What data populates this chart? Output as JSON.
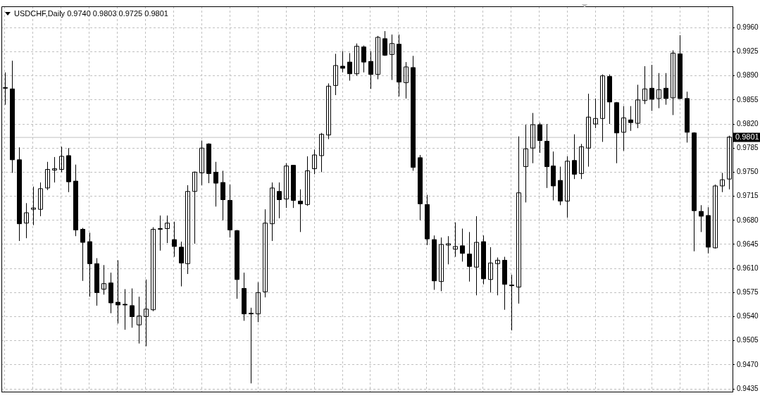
{
  "chart_data": {
    "type": "candlestick",
    "title": "USDCHF,Daily 0.9740 0.9803 0.9725 0.9801",
    "categories": [
      null,
      null,
      null,
      null,
      null,
      null,
      null,
      null,
      null,
      null,
      null,
      null,
      null,
      null,
      null,
      null,
      null,
      null,
      null,
      null,
      null,
      null,
      null,
      null,
      null,
      null,
      null,
      null,
      null,
      null,
      null,
      null,
      null,
      null,
      null,
      null,
      null,
      null,
      null,
      null,
      null,
      null,
      null,
      null,
      null,
      null,
      null,
      null,
      null,
      null,
      null,
      null,
      null,
      null,
      null,
      null,
      null,
      null,
      null,
      null,
      null,
      null,
      null,
      null,
      null,
      null,
      null,
      null,
      null,
      null,
      null,
      null,
      null,
      null,
      null,
      null,
      null,
      null,
      null,
      null,
      null,
      null,
      null,
      null,
      null,
      null,
      null,
      null,
      null,
      null,
      null,
      null,
      null,
      null,
      null,
      null,
      null,
      null,
      null,
      null,
      null,
      null,
      null,
      null
    ],
    "color": "#000000",
    "ohlc": [
      [
        0.9873,
        0.9895,
        0.9848,
        0.9872
      ],
      [
        0.9871,
        0.9912,
        0.9749,
        0.9768
      ],
      [
        0.9768,
        0.9786,
        0.965,
        0.9675
      ],
      [
        0.9676,
        0.9705,
        0.9654,
        0.9691
      ],
      [
        0.9696,
        0.9729,
        0.9673,
        0.9698
      ],
      [
        0.9696,
        0.9735,
        0.9686,
        0.9726
      ],
      [
        0.9727,
        0.9765,
        0.9724,
        0.9754
      ],
      [
        0.9753,
        0.9772,
        0.9735,
        0.9755
      ],
      [
        0.9754,
        0.9787,
        0.975,
        0.9773
      ],
      [
        0.9774,
        0.9785,
        0.9721,
        0.9736
      ],
      [
        0.9737,
        0.9761,
        0.9657,
        0.9666
      ],
      [
        0.9667,
        0.9669,
        0.9592,
        0.9648
      ],
      [
        0.9649,
        0.9662,
        0.9569,
        0.9617
      ],
      [
        0.9617,
        0.9625,
        0.9556,
        0.9575
      ],
      [
        0.958,
        0.9615,
        0.9572,
        0.9588
      ],
      [
        0.9589,
        0.9604,
        0.9545,
        0.956
      ],
      [
        0.9561,
        0.9622,
        0.953,
        0.9557
      ],
      [
        0.9558,
        0.958,
        0.9521,
        0.9557
      ],
      [
        0.9556,
        0.9581,
        0.9524,
        0.954
      ],
      [
        0.9528,
        0.9569,
        0.9501,
        0.9541
      ],
      [
        0.954,
        0.9594,
        0.9497,
        0.9551
      ],
      [
        0.955,
        0.967,
        0.9548,
        0.9667
      ],
      [
        0.9667,
        0.9687,
        0.9636,
        0.9668
      ],
      [
        0.9668,
        0.9687,
        0.9647,
        0.9676
      ],
      [
        0.9652,
        0.9678,
        0.9627,
        0.9642
      ],
      [
        0.9641,
        0.9649,
        0.9584,
        0.9618
      ],
      [
        0.9617,
        0.9731,
        0.9602,
        0.9722
      ],
      [
        0.9722,
        0.9751,
        0.9646,
        0.975
      ],
      [
        0.9749,
        0.9796,
        0.9731,
        0.9785
      ],
      [
        0.9791,
        0.9792,
        0.9734,
        0.9748
      ],
      [
        0.975,
        0.9765,
        0.97,
        0.9734
      ],
      [
        0.9735,
        0.9752,
        0.968,
        0.971
      ],
      [
        0.9709,
        0.9732,
        0.9655,
        0.9666
      ],
      [
        0.9665,
        0.9666,
        0.9566,
        0.9594
      ],
      [
        0.9581,
        0.9604,
        0.9534,
        0.9544
      ],
      [
        0.9545,
        0.9553,
        0.9443,
        0.9544
      ],
      [
        0.9544,
        0.959,
        0.9532,
        0.9575
      ],
      [
        0.9576,
        0.9696,
        0.9568,
        0.9676
      ],
      [
        0.9675,
        0.9735,
        0.965,
        0.9727
      ],
      [
        0.9722,
        0.9735,
        0.9683,
        0.971
      ],
      [
        0.9711,
        0.9763,
        0.9698,
        0.9759
      ],
      [
        0.976,
        0.976,
        0.9698,
        0.9709
      ],
      [
        0.9708,
        0.9725,
        0.9663,
        0.9704
      ],
      [
        0.9703,
        0.9773,
        0.9701,
        0.9752
      ],
      [
        0.9755,
        0.9783,
        0.9747,
        0.9775
      ],
      [
        0.9774,
        0.9807,
        0.975,
        0.9805
      ],
      [
        0.9804,
        0.9879,
        0.9798,
        0.9875
      ],
      [
        0.9876,
        0.9922,
        0.9862,
        0.9905
      ],
      [
        0.9904,
        0.9926,
        0.9895,
        0.9901
      ],
      [
        0.991,
        0.9923,
        0.9883,
        0.9893
      ],
      [
        0.9893,
        0.9937,
        0.989,
        0.9933
      ],
      [
        0.9932,
        0.9934,
        0.9895,
        0.991
      ],
      [
        0.9911,
        0.9926,
        0.9871,
        0.9892
      ],
      [
        0.9892,
        0.9948,
        0.9885,
        0.9946
      ],
      [
        0.9944,
        0.9955,
        0.9919,
        0.992
      ],
      [
        0.9921,
        0.995,
        0.9884,
        0.9937
      ],
      [
        0.9936,
        0.995,
        0.986,
        0.9881
      ],
      [
        0.988,
        0.991,
        0.9857,
        0.9903
      ],
      [
        0.9902,
        0.9919,
        0.9752,
        0.9757
      ],
      [
        0.9771,
        0.9775,
        0.968,
        0.9704
      ],
      [
        0.9703,
        0.9717,
        0.9644,
        0.9653
      ],
      [
        0.9652,
        0.9658,
        0.9579,
        0.9592
      ],
      [
        0.9591,
        0.9655,
        0.9577,
        0.9645
      ],
      [
        0.9644,
        0.9657,
        0.9616,
        0.9646
      ],
      [
        0.9638,
        0.9677,
        0.9627,
        0.9642
      ],
      [
        0.9643,
        0.9668,
        0.962,
        0.9632
      ],
      [
        0.9631,
        0.9663,
        0.9591,
        0.9613
      ],
      [
        0.9612,
        0.9686,
        0.9571,
        0.9648
      ],
      [
        0.9649,
        0.9658,
        0.9587,
        0.9595
      ],
      [
        0.9594,
        0.9641,
        0.9575,
        0.9618
      ],
      [
        0.9617,
        0.9626,
        0.9571,
        0.9622
      ],
      [
        0.9622,
        0.9627,
        0.955,
        0.9587
      ],
      [
        0.9586,
        0.9601,
        0.952,
        0.9585
      ],
      [
        0.9583,
        0.9802,
        0.9559,
        0.972
      ],
      [
        0.9758,
        0.9819,
        0.9706,
        0.9784
      ],
      [
        0.9785,
        0.9836,
        0.9763,
        0.9819
      ],
      [
        0.9819,
        0.9822,
        0.9778,
        0.9796
      ],
      [
        0.9795,
        0.982,
        0.9727,
        0.9758
      ],
      [
        0.9759,
        0.978,
        0.9709,
        0.973
      ],
      [
        0.9738,
        0.9758,
        0.9702,
        0.9708
      ],
      [
        0.9708,
        0.9773,
        0.9684,
        0.9766
      ],
      [
        0.9767,
        0.9805,
        0.974,
        0.9747
      ],
      [
        0.9748,
        0.9791,
        0.974,
        0.9787
      ],
      [
        0.9785,
        0.9864,
        0.9758,
        0.983
      ],
      [
        0.982,
        0.9857,
        0.9814,
        0.9828
      ],
      [
        0.9828,
        0.9892,
        0.9794,
        0.989
      ],
      [
        0.9889,
        0.9892,
        0.982,
        0.9852
      ],
      [
        0.9851,
        0.9852,
        0.9763,
        0.9807
      ],
      [
        0.9808,
        0.9846,
        0.9781,
        0.9829
      ],
      [
        0.9826,
        0.9846,
        0.981,
        0.9822
      ],
      [
        0.9821,
        0.9877,
        0.9814,
        0.9855
      ],
      [
        0.9854,
        0.9904,
        0.9849,
        0.9871
      ],
      [
        0.9872,
        0.9906,
        0.9839,
        0.9856
      ],
      [
        0.9857,
        0.9894,
        0.9843,
        0.987
      ],
      [
        0.9872,
        0.9894,
        0.9848,
        0.9857
      ],
      [
        0.9858,
        0.9927,
        0.9833,
        0.9923
      ],
      [
        0.9922,
        0.9949,
        0.9856,
        0.9857
      ],
      [
        0.9857,
        0.9867,
        0.9793,
        0.9808
      ],
      [
        0.9807,
        0.9808,
        0.9635,
        0.9694
      ],
      [
        0.9693,
        0.9702,
        0.9663,
        0.9686
      ],
      [
        0.9687,
        0.9699,
        0.9632,
        0.9641
      ],
      [
        0.964,
        0.9732,
        0.9639,
        0.973
      ],
      [
        0.973,
        0.9749,
        0.9721,
        0.9739
      ],
      [
        0.974,
        0.9803,
        0.9725,
        0.9801
      ]
    ],
    "ylim": [
      0.9431,
      0.9991
    ],
    "yticks": [
      {
        "value": 0.996,
        "label": "0.9960"
      },
      {
        "value": 0.9925,
        "label": "0.9925"
      },
      {
        "value": 0.989,
        "label": "0.9890"
      },
      {
        "value": 0.9855,
        "label": "0.9855"
      },
      {
        "value": 0.982,
        "label": "0.9820"
      },
      {
        "value": 0.9785,
        "label": "0.9785"
      },
      {
        "value": 0.975,
        "label": "0.9750"
      },
      {
        "value": 0.9715,
        "label": "0.9715"
      },
      {
        "value": 0.968,
        "label": "0.9680"
      },
      {
        "value": 0.9645,
        "label": "0.9645"
      },
      {
        "value": 0.961,
        "label": "0.9610"
      },
      {
        "value": 0.9575,
        "label": "0.9575"
      },
      {
        "value": 0.954,
        "label": "0.9540"
      },
      {
        "value": 0.9505,
        "label": "0.9505"
      },
      {
        "value": 0.947,
        "label": "0.9470"
      },
      {
        "value": 0.9435,
        "label": "0.9435"
      }
    ],
    "ref_lines": [
      {
        "axis": "y",
        "value": 0.9801,
        "label": "0.9801",
        "color": "#c0c0c0"
      }
    ],
    "grid": true,
    "tick_labels": "y"
  }
}
